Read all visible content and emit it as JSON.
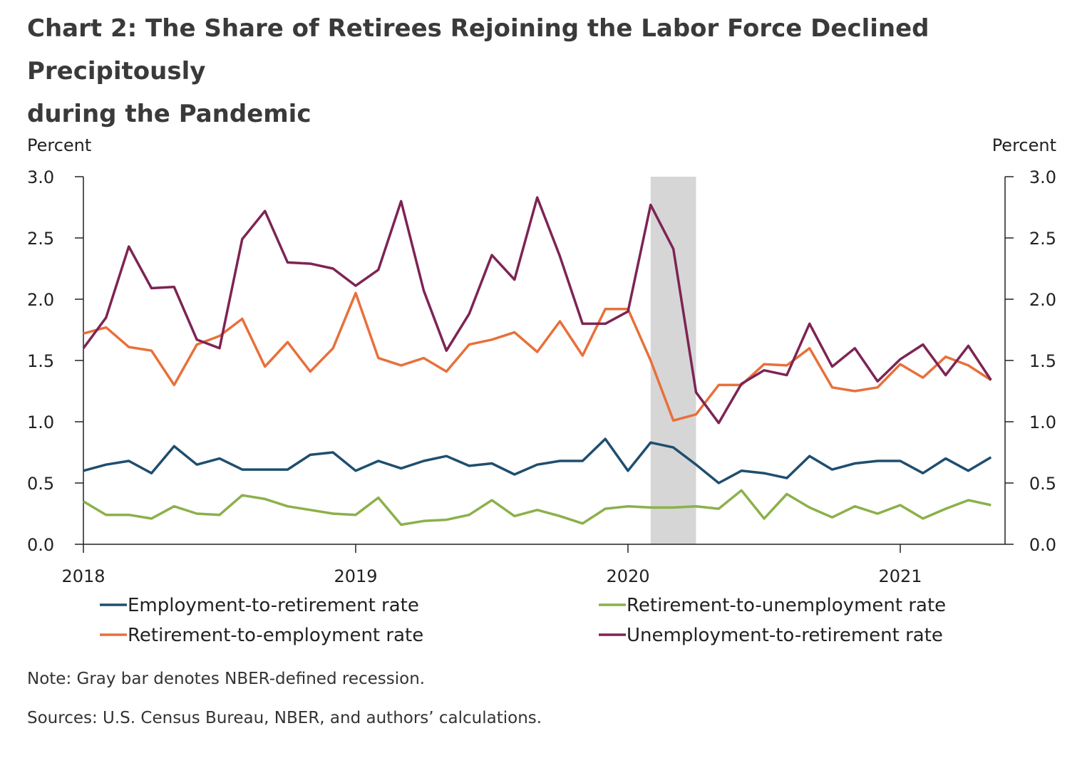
{
  "title": {
    "line1": "Chart 2: The Share of Retirees Rejoining the Labor Force Declined Precipitously",
    "line2": "during the Pandemic"
  },
  "note": "Note: Gray bar denotes NBER-defined recession.",
  "sources": "Sources: U.S. Census Bureau, NBER, and authors’ calculations.",
  "chart_data": {
    "type": "line",
    "left_axis_label": "Percent",
    "right_axis_label": "Percent",
    "ylim": [
      0,
      3
    ],
    "y_ticks": [
      "0.0",
      "0.5",
      "1.0",
      "1.5",
      "2.0",
      "2.5",
      "3.0"
    ],
    "x_tick_labels": [
      "2018",
      "2019",
      "2020",
      "2021"
    ],
    "x_start": "2018-01",
    "recession": {
      "start": "2020-02",
      "end": "2020-04"
    },
    "legend_placement": "bottom",
    "x": [
      "2018-01",
      "2018-02",
      "2018-03",
      "2018-04",
      "2018-05",
      "2018-06",
      "2018-07",
      "2018-08",
      "2018-09",
      "2018-10",
      "2018-11",
      "2018-12",
      "2019-01",
      "2019-02",
      "2019-03",
      "2019-04",
      "2019-05",
      "2019-06",
      "2019-07",
      "2019-08",
      "2019-09",
      "2019-10",
      "2019-11",
      "2019-12",
      "2020-01",
      "2020-02",
      "2020-03",
      "2020-04",
      "2020-05",
      "2020-06",
      "2020-07",
      "2020-08",
      "2020-09",
      "2020-10",
      "2020-11",
      "2020-12",
      "2021-01",
      "2021-02",
      "2021-03",
      "2021-04",
      "2021-05"
    ],
    "series": [
      {
        "name": "Employment-to-retirement rate",
        "color": "#1f4e6e",
        "values": [
          0.6,
          0.65,
          0.68,
          0.58,
          0.8,
          0.65,
          0.7,
          0.61,
          0.61,
          0.61,
          0.73,
          0.75,
          0.6,
          0.68,
          0.62,
          0.68,
          0.72,
          0.64,
          0.66,
          0.57,
          0.65,
          0.68,
          0.68,
          0.86,
          0.6,
          0.83,
          0.79,
          0.65,
          0.5,
          0.6,
          0.58,
          0.54,
          0.72,
          0.61,
          0.66,
          0.68,
          0.68,
          0.58,
          0.7,
          0.6,
          0.71
        ]
      },
      {
        "name": "Retirement-to-unemployment rate",
        "color": "#8cb04a",
        "values": [
          0.35,
          0.24,
          0.24,
          0.21,
          0.31,
          0.25,
          0.24,
          0.4,
          0.37,
          0.31,
          0.28,
          0.25,
          0.24,
          0.38,
          0.16,
          0.19,
          0.2,
          0.24,
          0.36,
          0.23,
          0.28,
          0.23,
          0.17,
          0.29,
          0.31,
          0.3,
          0.3,
          0.31,
          0.29,
          0.44,
          0.21,
          0.41,
          0.3,
          0.22,
          0.31,
          0.25,
          0.32,
          0.21,
          0.29,
          0.36,
          0.32
        ]
      },
      {
        "name": "Retirement-to-employment rate",
        "color": "#e8703a",
        "values": [
          1.72,
          1.77,
          1.61,
          1.58,
          1.3,
          1.63,
          1.7,
          1.84,
          1.45,
          1.65,
          1.41,
          1.6,
          2.05,
          1.52,
          1.46,
          1.52,
          1.41,
          1.63,
          1.67,
          1.73,
          1.57,
          1.82,
          1.54,
          1.92,
          1.92,
          1.5,
          1.01,
          1.06,
          1.3,
          1.3,
          1.47,
          1.46,
          1.6,
          1.28,
          1.25,
          1.28,
          1.47,
          1.36,
          1.53,
          1.46,
          1.34
        ]
      },
      {
        "name": "Unemployment-to-retirement rate",
        "color": "#7d2454",
        "values": [
          1.6,
          1.85,
          2.43,
          2.09,
          2.1,
          1.67,
          1.6,
          2.49,
          2.72,
          2.3,
          2.29,
          2.25,
          2.11,
          2.24,
          2.8,
          2.07,
          1.58,
          1.88,
          2.36,
          2.16,
          2.83,
          2.35,
          1.8,
          1.8,
          1.9,
          2.77,
          2.41,
          1.24,
          0.99,
          1.31,
          1.42,
          1.38,
          1.8,
          1.45,
          1.6,
          1.33,
          1.51,
          1.63,
          1.38,
          1.62,
          1.34
        ]
      }
    ]
  }
}
